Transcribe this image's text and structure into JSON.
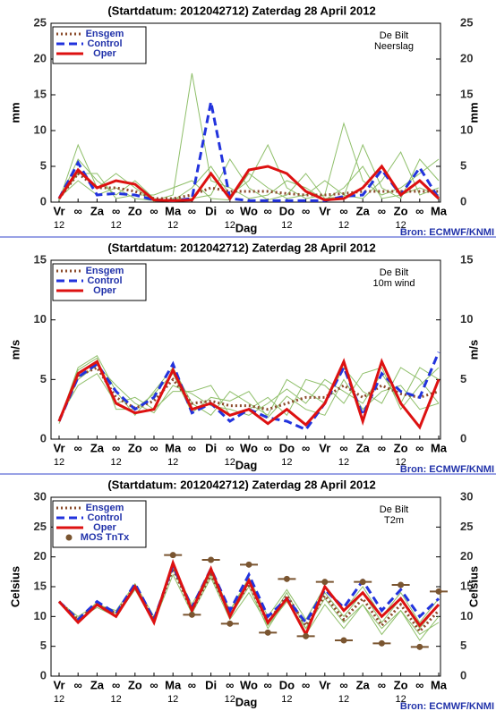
{
  "chart_data": [
    {
      "type": "line",
      "title": "(Startdatum: 2012042712)   Zaterdag  28 April     2012",
      "location": "De Bilt",
      "parameter": "Neerslag",
      "ylabel": "mm",
      "xlabel": "Dag",
      "source": "Bron: ECMWF/KNMI",
      "categories": [
        "Vr",
        "∞",
        "Za",
        "∞",
        "Zo",
        "∞",
        "Ma",
        "∞",
        "Di",
        "∞",
        "Wo",
        "∞",
        "Do",
        "∞",
        "Vr",
        "∞",
        "Za",
        "∞",
        "Zo",
        "∞",
        "Ma"
      ],
      "sublabels": [
        "12",
        null,
        null,
        "12",
        null,
        null,
        "12",
        null,
        null,
        "12",
        null,
        null,
        "12",
        null,
        null,
        "12",
        null,
        null,
        "12",
        null,
        null
      ],
      "ylim": [
        0,
        25
      ],
      "yticks": [
        0,
        5,
        10,
        15,
        20,
        25
      ],
      "members": [
        {
          "color": "#8fbf6a",
          "values": [
            0.3,
            6,
            3,
            1,
            3,
            0.5,
            0.2,
            2,
            5,
            1,
            3,
            8,
            2,
            0.5,
            1,
            11,
            3,
            1,
            2,
            4,
            6
          ]
        },
        {
          "color": "#8fbf6a",
          "values": [
            0.6,
            3,
            1,
            2,
            0.5,
            0.2,
            1,
            18,
            3,
            2,
            0.5,
            1,
            3,
            2,
            0.3,
            2,
            5,
            0.5,
            1,
            2,
            1
          ]
        },
        {
          "color": "#8fbf6a",
          "values": [
            0.2,
            8,
            2,
            4,
            2,
            0.1,
            0.5,
            0.5,
            1,
            6,
            2,
            0.3,
            1,
            4,
            0.5,
            0.8,
            8,
            2,
            0.5,
            6,
            3
          ]
        },
        {
          "color": "#8fbf6a",
          "values": [
            0.4,
            4,
            4,
            0.5,
            1,
            1,
            2,
            3,
            0.5,
            0.3,
            4,
            2,
            0.5,
            1,
            3,
            1,
            0.5,
            3,
            7,
            1,
            2
          ]
        }
      ],
      "series": [
        {
          "name": "Ensgem",
          "color": "#8b4a2a",
          "style": "dotted",
          "values": [
            0.5,
            4,
            2,
            2,
            1.5,
            0.5,
            0.5,
            1,
            2,
            1.5,
            1.5,
            1.5,
            1.2,
            1,
            1,
            1.2,
            1.5,
            1.5,
            1.5,
            1.5,
            1.5
          ]
        },
        {
          "name": "Control",
          "color": "#2233dd",
          "style": "dashed",
          "values": [
            0.5,
            5.5,
            1,
            1.2,
            1,
            0.3,
            0.2,
            0.5,
            14,
            0.5,
            0.2,
            0.2,
            0.2,
            0.2,
            0.2,
            0.8,
            1,
            4.5,
            1,
            4.8,
            0.5
          ]
        },
        {
          "name": "Oper",
          "color": "#dd1111",
          "style": "solid",
          "values": [
            0.5,
            4.5,
            2,
            3,
            2.5,
            0.3,
            0.2,
            0.3,
            4,
            0.5,
            4.5,
            5,
            4,
            1.5,
            0.3,
            0.5,
            2,
            5,
            1,
            3,
            0.5
          ]
        }
      ]
    },
    {
      "type": "line",
      "title": "(Startdatum: 2012042712)   Zaterdag  28 April     2012",
      "location": "De Bilt",
      "parameter": "10m wind",
      "ylabel": "m/s",
      "xlabel": "Dag",
      "source": "Bron: ECMWF/KNMI",
      "categories": [
        "Vr",
        "∞",
        "Za",
        "∞",
        "Zo",
        "∞",
        "Ma",
        "∞",
        "Di",
        "∞",
        "Wo",
        "∞",
        "Do",
        "∞",
        "Vr",
        "∞",
        "Za",
        "∞",
        "Zo",
        "∞",
        "Ma"
      ],
      "sublabels": [
        "12",
        null,
        null,
        "12",
        null,
        null,
        "12",
        null,
        null,
        "12",
        null,
        null,
        "12",
        null,
        null,
        "12",
        null,
        null,
        "12",
        null,
        null
      ],
      "ylim": [
        0,
        15
      ],
      "yticks": [
        0,
        5,
        10,
        15
      ],
      "members": [
        {
          "color": "#8fbf6a",
          "values": [
            1.5,
            6,
            7,
            4,
            2,
            4,
            6,
            3,
            2,
            4,
            3,
            2,
            5,
            4,
            3,
            6,
            4,
            3,
            6,
            5,
            3
          ]
        },
        {
          "color": "#8fbf6a",
          "values": [
            1.8,
            4.5,
            5.5,
            3,
            3.5,
            2.5,
            4,
            4,
            4.5,
            2,
            2.5,
            3.5,
            2,
            5,
            4.5,
            3,
            5.5,
            6,
            2.5,
            4.5,
            6
          ]
        },
        {
          "color": "#8fbf6a",
          "values": [
            1.3,
            5.8,
            6.8,
            2.5,
            2.5,
            3.8,
            5.5,
            2.2,
            3.5,
            3.2,
            4,
            1.8,
            3.6,
            2.5,
            2,
            5,
            2.5,
            4,
            4.5,
            2.5,
            3
          ]
        },
        {
          "color": "#8fbf6a",
          "values": [
            1.6,
            5,
            6.2,
            4.5,
            3,
            2.2,
            4.5,
            3.8,
            2.8,
            2.5,
            2,
            3,
            4.2,
            3,
            5,
            4,
            3,
            5.5,
            3,
            6,
            5
          ]
        }
      ],
      "series": [
        {
          "name": "Ensgem",
          "color": "#8b4a2a",
          "style": "dotted",
          "values": [
            1.5,
            5.3,
            6,
            3.5,
            2.6,
            3.2,
            5,
            3,
            3.2,
            2.8,
            2.8,
            2.5,
            3,
            3.5,
            3.5,
            4.5,
            3.5,
            4.5,
            3.8,
            3.5,
            4
          ]
        },
        {
          "name": "Control",
          "color": "#2233dd",
          "style": "dashed",
          "values": [
            1.5,
            5.2,
            6.3,
            4,
            2.5,
            3.5,
            6.3,
            2.2,
            3,
            1.5,
            2.5,
            1.8,
            1.5,
            0.8,
            3,
            6,
            2,
            5.5,
            4,
            3.5,
            7.3
          ]
        },
        {
          "name": "Oper",
          "color": "#dd1111",
          "style": "solid",
          "values": [
            1.5,
            5.5,
            6.5,
            3,
            2.2,
            2.5,
            5.8,
            2.5,
            3,
            2,
            2.5,
            1.3,
            2.5,
            1.2,
            3,
            6.5,
            1.5,
            6.5,
            3,
            1,
            5
          ]
        }
      ]
    },
    {
      "type": "line",
      "title": "(Startdatum: 2012042712)   Zaterdag  28 April     2012",
      "location": "De Bilt",
      "parameter": "T2m",
      "ylabel": "Celsius",
      "xlabel": "Dag",
      "source": "Bron: ECMWF/KNMI",
      "categories": [
        "Vr",
        "∞",
        "Za",
        "∞",
        "Zo",
        "∞",
        "Ma",
        "∞",
        "Di",
        "∞",
        "Wo",
        "∞",
        "Do",
        "∞",
        "Vr",
        "∞",
        "Za",
        "∞",
        "Zo",
        "∞",
        "Ma"
      ],
      "sublabels": [
        "12",
        null,
        null,
        "12",
        null,
        null,
        "12",
        null,
        null,
        "12",
        null,
        null,
        "12",
        null,
        null,
        "12",
        null,
        null,
        "12",
        null,
        null
      ],
      "ylim": [
        0,
        30
      ],
      "yticks": [
        0,
        5,
        10,
        15,
        20,
        25,
        30
      ],
      "members": [
        {
          "color": "#8fbf6a",
          "values": [
            12.5,
            9,
            12.5,
            10,
            15,
            9,
            19,
            11,
            17,
            10,
            15,
            8,
            13,
            7,
            12,
            8,
            12,
            7,
            11,
            6,
            10
          ]
        },
        {
          "color": "#8fbf6a",
          "values": [
            12.5,
            10,
            12,
            11,
            15.5,
            10,
            18.5,
            12,
            18,
            11,
            16.5,
            10,
            14.5,
            9.5,
            15,
            11,
            15,
            10,
            14,
            9,
            13
          ]
        },
        {
          "color": "#8fbf6a",
          "values": [
            12.5,
            9.5,
            11.5,
            10,
            14.5,
            9,
            17,
            10.5,
            16.5,
            9.5,
            14,
            8.5,
            12.5,
            8,
            13,
            9,
            12,
            8,
            11,
            7,
            9
          ]
        },
        {
          "color": "#8fbf6a",
          "values": [
            12.5,
            9,
            12,
            10.5,
            15,
            9.5,
            18,
            11,
            17.5,
            11,
            16,
            9,
            14,
            8,
            14,
            10,
            14,
            9,
            13,
            8,
            12
          ]
        }
      ],
      "series": [
        {
          "name": "Ensgem",
          "color": "#8b4a2a",
          "style": "dotted",
          "values": [
            12.5,
            9.5,
            12,
            10.5,
            15,
            9.5,
            18,
            11,
            17,
            10.5,
            15.5,
            9,
            13.5,
            8.5,
            13.5,
            9.5,
            13,
            8.5,
            12,
            7.5,
            11
          ]
        },
        {
          "name": "Control",
          "color": "#2233dd",
          "style": "dashed",
          "values": [
            12.5,
            9.5,
            12.5,
            10.5,
            15.5,
            9.5,
            18.5,
            11.5,
            18,
            11,
            17,
            10,
            13,
            9,
            14.5,
            11.5,
            16,
            11,
            14.5,
            10,
            13
          ]
        },
        {
          "name": "Oper",
          "color": "#dd1111",
          "style": "solid",
          "values": [
            12.5,
            9,
            12,
            10,
            15,
            9,
            19,
            11,
            18,
            10,
            16,
            9,
            13,
            7,
            15,
            11,
            14,
            10,
            13,
            8.5,
            12
          ]
        },
        {
          "name": "MOS TnTx",
          "color": "#7a5530",
          "style": "points",
          "values": [
            null,
            null,
            null,
            null,
            null,
            null,
            20.3,
            10.3,
            19.5,
            8.8,
            18.7,
            7.3,
            16.3,
            6.7,
            15.8,
            6.0,
            15.8,
            5.5,
            15.3,
            4.9,
            14.2
          ]
        }
      ]
    }
  ]
}
